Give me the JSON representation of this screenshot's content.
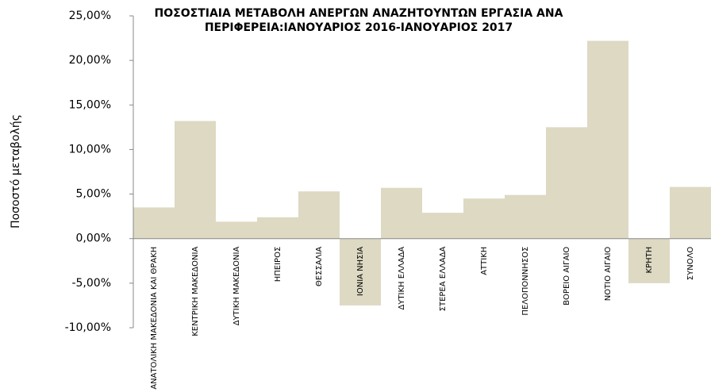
{
  "chart_data": {
    "type": "bar",
    "title": [
      "ΠΟΣΟΣΤΙΑΙΑ ΜΕΤΑΒΟΛΗ ΑΝΕΡΓΩΝ ΑΝΑΖΗΤΟΥΝΤΩΝ ΕΡΓΑΣΙΑ ΑΝΑ",
      "ΠΕΡΙΦΕΡΕΙΑ:ΙΑΝΟΥΑΡΙΟΣ 2016-ΙΑΝΟΥΑΡΙΟΣ  2017"
    ],
    "y_label": "Ποσοστό μεταβολής",
    "categories": [
      "ΑΝΑΤΟΛΙΚΗ ΜΑΚΕΔΟΝΙΑ ΚΑΙ ΘΡΑΚΗ",
      "ΚΕΝΤΡΙΚΗ ΜΑΚΕΔΟΝΙΑ",
      "ΔΥΤΙΚΗ ΜΑΚΕΔΟΝΙΑ",
      "ΗΠΕΙΡΟΣ",
      "ΘΕΣΣΑΛΙΑ",
      "ΙΟΝΙΑ ΝΗΣΙΑ",
      "ΔΥΤΙΚΗ ΕΛΛΑΔΑ",
      "ΣΤΕΡΕΑ ΕΛΛΑΔΑ",
      "ΑΤΤΙΚΗ",
      "ΠΕΛΟΠΟΝΝΗΣΟΣ",
      "ΒΟΡΕΙΟ ΑΙΓΑΙΟ",
      "ΝΟΤΙΟ ΑΙΓΑΙΟ",
      "ΚΡΗΤΗ",
      "ΣΥΝΟΛΟ"
    ],
    "values": [
      3.5,
      13.2,
      1.9,
      2.4,
      5.3,
      -7.5,
      5.7,
      2.9,
      4.5,
      4.9,
      12.5,
      22.2,
      -5.0,
      5.8
    ],
    "color": "#ddd9c3",
    "ylim": [
      -10,
      25
    ],
    "yticks": [
      {
        "value": -10,
        "label": "-10,00%"
      },
      {
        "value": -5,
        "label": "-5,00%"
      },
      {
        "value": 0,
        "label": "0,00%"
      },
      {
        "value": 5,
        "label": "5,00%"
      },
      {
        "value": 10,
        "label": "10,00%"
      },
      {
        "value": 15,
        "label": "15,00%"
      },
      {
        "value": 20,
        "label": "20,00%"
      },
      {
        "value": 25,
        "label": "25,00%"
      }
    ],
    "grid": false
  }
}
